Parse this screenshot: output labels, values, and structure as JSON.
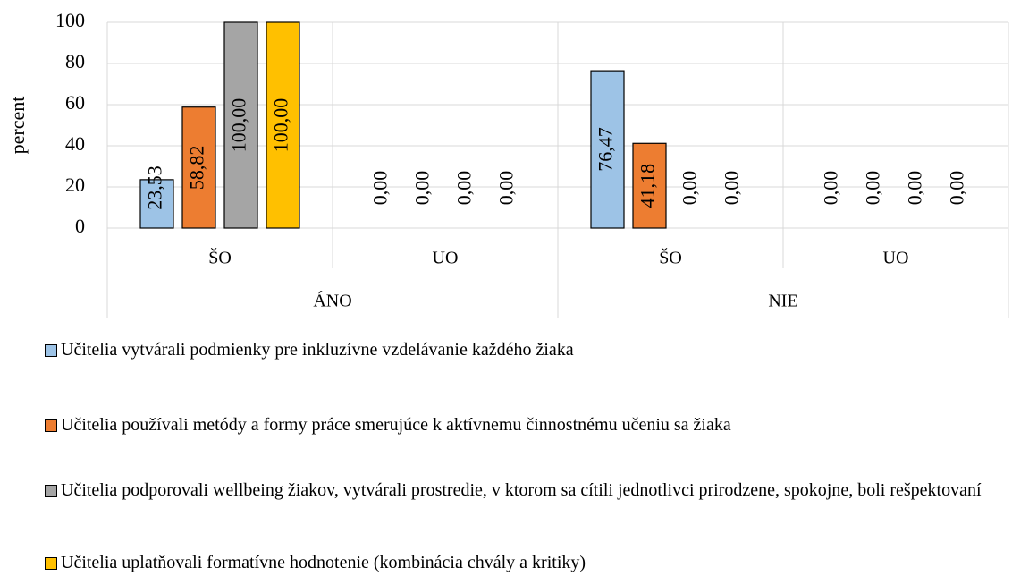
{
  "chart_data": {
    "type": "bar",
    "y_label": "percent",
    "categories": [
      "ŠO",
      "UO",
      "ŠO",
      "UO"
    ],
    "groups": [
      "ÁNO",
      "NIE"
    ],
    "series": [
      {
        "name": "Učitelia vytvárali podmienky pre inkluzívne vzdelávanie každého žiaka",
        "color": "#9dc3e6",
        "values": [
          23.53,
          0,
          76.47,
          0
        ],
        "value_labels": [
          "23,53",
          "0,00",
          "76,47",
          "0,00"
        ]
      },
      {
        "name": "Učitelia používali metódy a formy práce smerujúce k aktívnemu činnostnému učeniu sa žiaka",
        "color": "#ed7d31",
        "values": [
          58.82,
          0,
          41.18,
          0
        ],
        "value_labels": [
          "58,82",
          "0,00",
          "41,18",
          "0,00"
        ]
      },
      {
        "name": "Učitelia podporovali wellbeing žiakov, vytvárali prostredie, v ktorom sa cítili jednotlivci prirodzene, spokojne, boli rešpektovaní",
        "color": "#a5a5a5",
        "values": [
          100,
          0,
          0,
          0
        ],
        "value_labels": [
          "100,00",
          "0,00",
          "0,00",
          "0,00"
        ]
      },
      {
        "name": "Učitelia uplatňovali formatívne hodnotenie (kombinácia chvály a kritiky)",
        "color": "#ffc000",
        "values": [
          100,
          0,
          0,
          0
        ],
        "value_labels": [
          "100,00",
          "0,00",
          "0,00",
          "0,00"
        ]
      }
    ],
    "ylim": [
      0,
      100
    ],
    "yticks": [
      0,
      20,
      40,
      60,
      80,
      100
    ],
    "grid": true
  }
}
